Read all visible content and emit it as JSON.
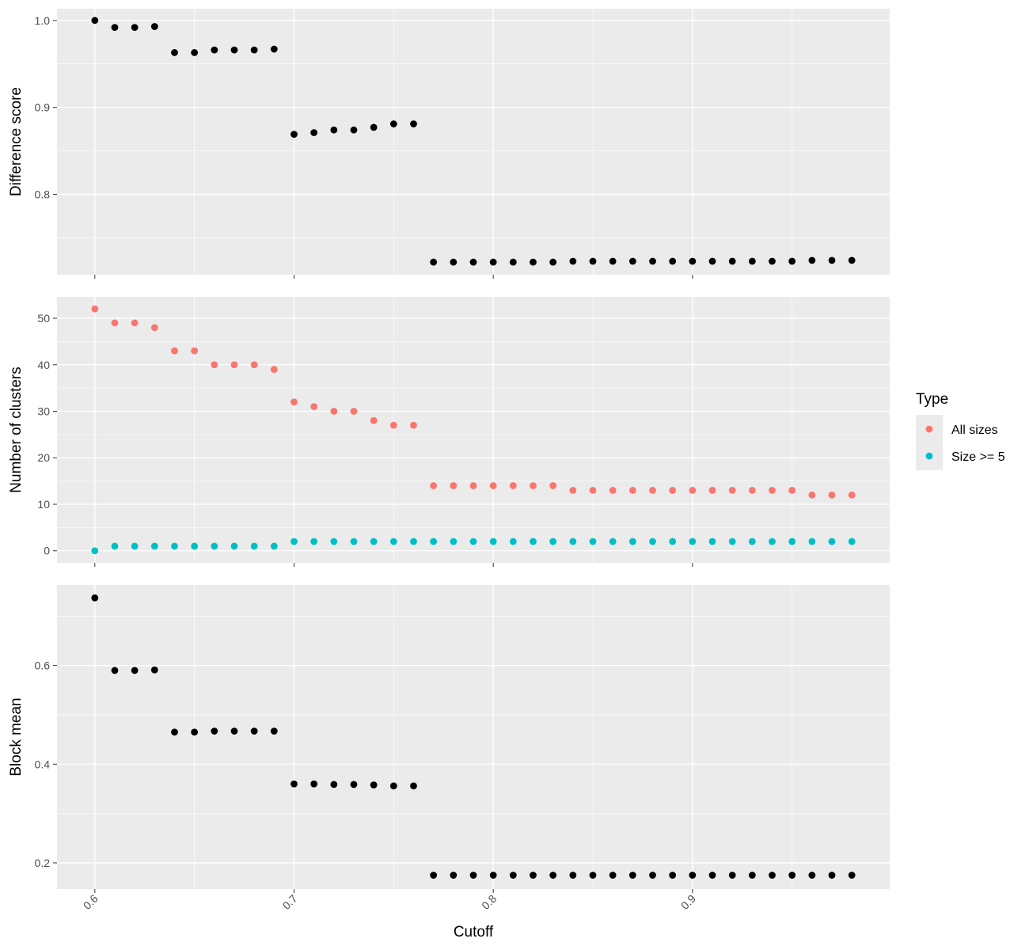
{
  "chart_data": {
    "type": "scatter",
    "x_label": "Cutoff",
    "x": [
      0.6,
      0.61,
      0.62,
      0.63,
      0.64,
      0.65,
      0.66,
      0.67,
      0.68,
      0.69,
      0.7,
      0.71,
      0.72,
      0.73,
      0.74,
      0.75,
      0.76,
      0.77,
      0.78,
      0.79,
      0.8,
      0.81,
      0.82,
      0.83,
      0.84,
      0.85,
      0.86,
      0.87,
      0.88,
      0.89,
      0.9,
      0.91,
      0.92,
      0.93,
      0.94,
      0.95,
      0.96,
      0.97,
      0.98
    ],
    "x_ticks": [
      0.6,
      0.7,
      0.8,
      0.9
    ],
    "x_tick_labels": [
      "0.6",
      "0.7",
      "0.8",
      "0.9"
    ],
    "xlim": [
      0.581,
      0.999
    ],
    "grid": true,
    "legend_position": "right",
    "legend": {
      "title": "Type",
      "entries": [
        {
          "label": "All sizes",
          "color": "#F8766D"
        },
        {
          "label": "Size >= 5",
          "color": "#00BFC4"
        }
      ]
    },
    "panels": [
      {
        "ylabel": "Difference score",
        "ylim": [
          0.7075,
          1.0135
        ],
        "y_ticks": [
          0.8,
          0.9,
          1.0
        ],
        "y_tick_labels": [
          "0.8",
          "0.9",
          "1.0"
        ],
        "series": [
          {
            "color": "#000000",
            "values": [
              1.0,
              0.992,
              0.992,
              0.993,
              0.963,
              0.963,
              0.966,
              0.966,
              0.966,
              0.967,
              0.869,
              0.871,
              0.874,
              0.874,
              0.877,
              0.881,
              0.881,
              0.722,
              0.722,
              0.722,
              0.722,
              0.722,
              0.722,
              0.722,
              0.723,
              0.723,
              0.723,
              0.723,
              0.723,
              0.723,
              0.723,
              0.723,
              0.723,
              0.723,
              0.723,
              0.723,
              0.724,
              0.724,
              0.724
            ]
          }
        ]
      },
      {
        "ylabel": "Number of clusters",
        "ylim": [
          -2.6,
          54.6
        ],
        "y_ticks": [
          0,
          10,
          20,
          30,
          40,
          50
        ],
        "y_tick_labels": [
          "0",
          "10",
          "20",
          "30",
          "40",
          "50"
        ],
        "series": [
          {
            "name": "All sizes",
            "color": "#F8766D",
            "values": [
              52,
              49,
              49,
              48,
              43,
              43,
              40,
              40,
              40,
              39,
              32,
              31,
              30,
              30,
              28,
              27,
              27,
              14,
              14,
              14,
              14,
              14,
              14,
              14,
              13,
              13,
              13,
              13,
              13,
              13,
              13,
              13,
              13,
              13,
              13,
              13,
              12,
              12,
              12
            ]
          },
          {
            "name": "Size >= 5",
            "color": "#00BFC4",
            "values": [
              0,
              1,
              1,
              1,
              1,
              1,
              1,
              1,
              1,
              1,
              2,
              2,
              2,
              2,
              2,
              2,
              2,
              2,
              2,
              2,
              2,
              2,
              2,
              2,
              2,
              2,
              2,
              2,
              2,
              2,
              2,
              2,
              2,
              2,
              2,
              2,
              2,
              2,
              2
            ]
          }
        ]
      },
      {
        "ylabel": "Block mean",
        "ylim": [
          0.147,
          0.763
        ],
        "y_ticks": [
          0.2,
          0.4,
          0.6
        ],
        "y_tick_labels": [
          "0.2",
          "0.4",
          "0.6"
        ],
        "series": [
          {
            "color": "#000000",
            "values": [
              0.737,
              0.59,
              0.59,
              0.591,
              0.465,
              0.465,
              0.467,
              0.467,
              0.467,
              0.467,
              0.36,
              0.36,
              0.359,
              0.359,
              0.358,
              0.356,
              0.356,
              0.175,
              0.175,
              0.175,
              0.175,
              0.175,
              0.175,
              0.175,
              0.175,
              0.175,
              0.175,
              0.175,
              0.175,
              0.175,
              0.175,
              0.175,
              0.175,
              0.175,
              0.175,
              0.175,
              0.175,
              0.175,
              0.175
            ]
          }
        ]
      }
    ]
  }
}
